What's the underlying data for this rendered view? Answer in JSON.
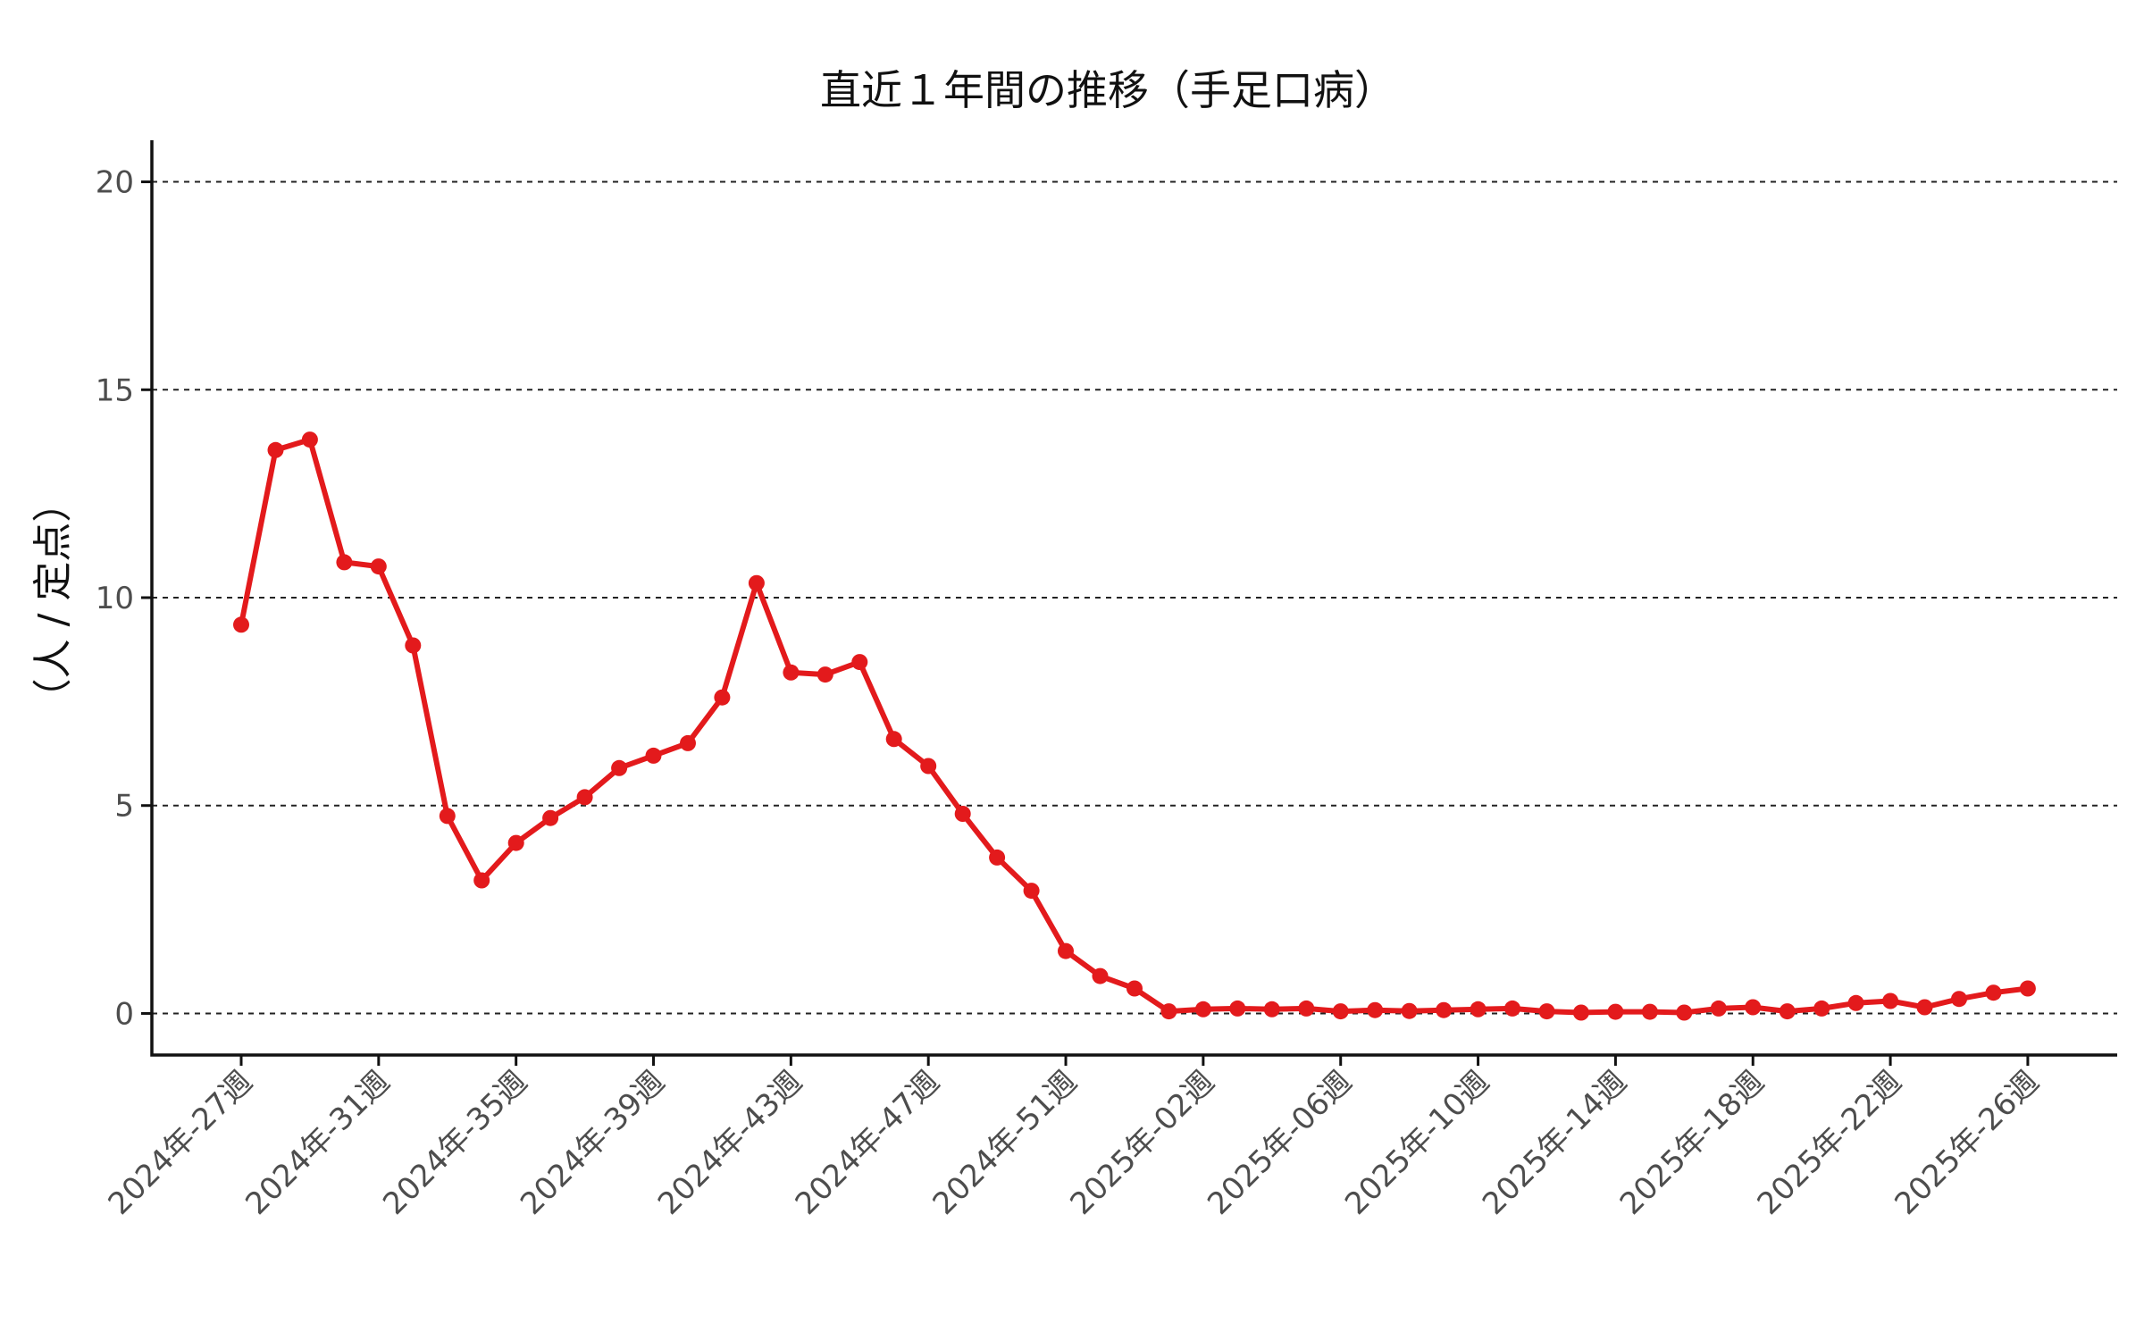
{
  "chart_data": {
    "type": "line",
    "title": "直近１年間の推移（手足口病）",
    "xlabel": "",
    "ylabel": "（人 / 定点）",
    "ylim": [
      -1,
      21
    ],
    "yticks": [
      0,
      5,
      10,
      15,
      20
    ],
    "grid": "horizontal dashed",
    "legend": "none",
    "x_tick_labels": [
      "2024年-27週",
      "2024年-31週",
      "2024年-35週",
      "2024年-39週",
      "2024年-43週",
      "2024年-47週",
      "2024年-51週",
      "2025年-02週",
      "2025年-06週",
      "2025年-10週",
      "2025年-14週",
      "2025年-18週",
      "2025年-22週",
      "2025年-26週"
    ],
    "line_color": "#e31a1c",
    "series": [
      {
        "values": [
          9.35,
          13.55,
          13.8,
          10.85,
          10.75,
          8.85,
          4.75,
          3.2,
          4.1,
          4.7,
          5.2,
          5.9,
          6.2,
          6.5,
          7.6,
          10.35,
          8.2,
          8.15,
          8.45,
          6.6,
          5.95,
          4.8,
          3.75,
          2.95,
          1.5,
          0.9,
          0.6,
          0.05,
          0.1,
          0.12,
          0.1,
          0.12,
          0.05,
          0.08,
          0.06,
          0.08,
          0.1,
          0.12,
          0.05,
          0.02,
          0.04,
          0.04,
          0.02,
          0.12,
          0.15,
          0.05,
          0.12,
          0.25,
          0.3,
          0.15,
          0.35,
          0.5,
          0.6
        ]
      }
    ]
  }
}
